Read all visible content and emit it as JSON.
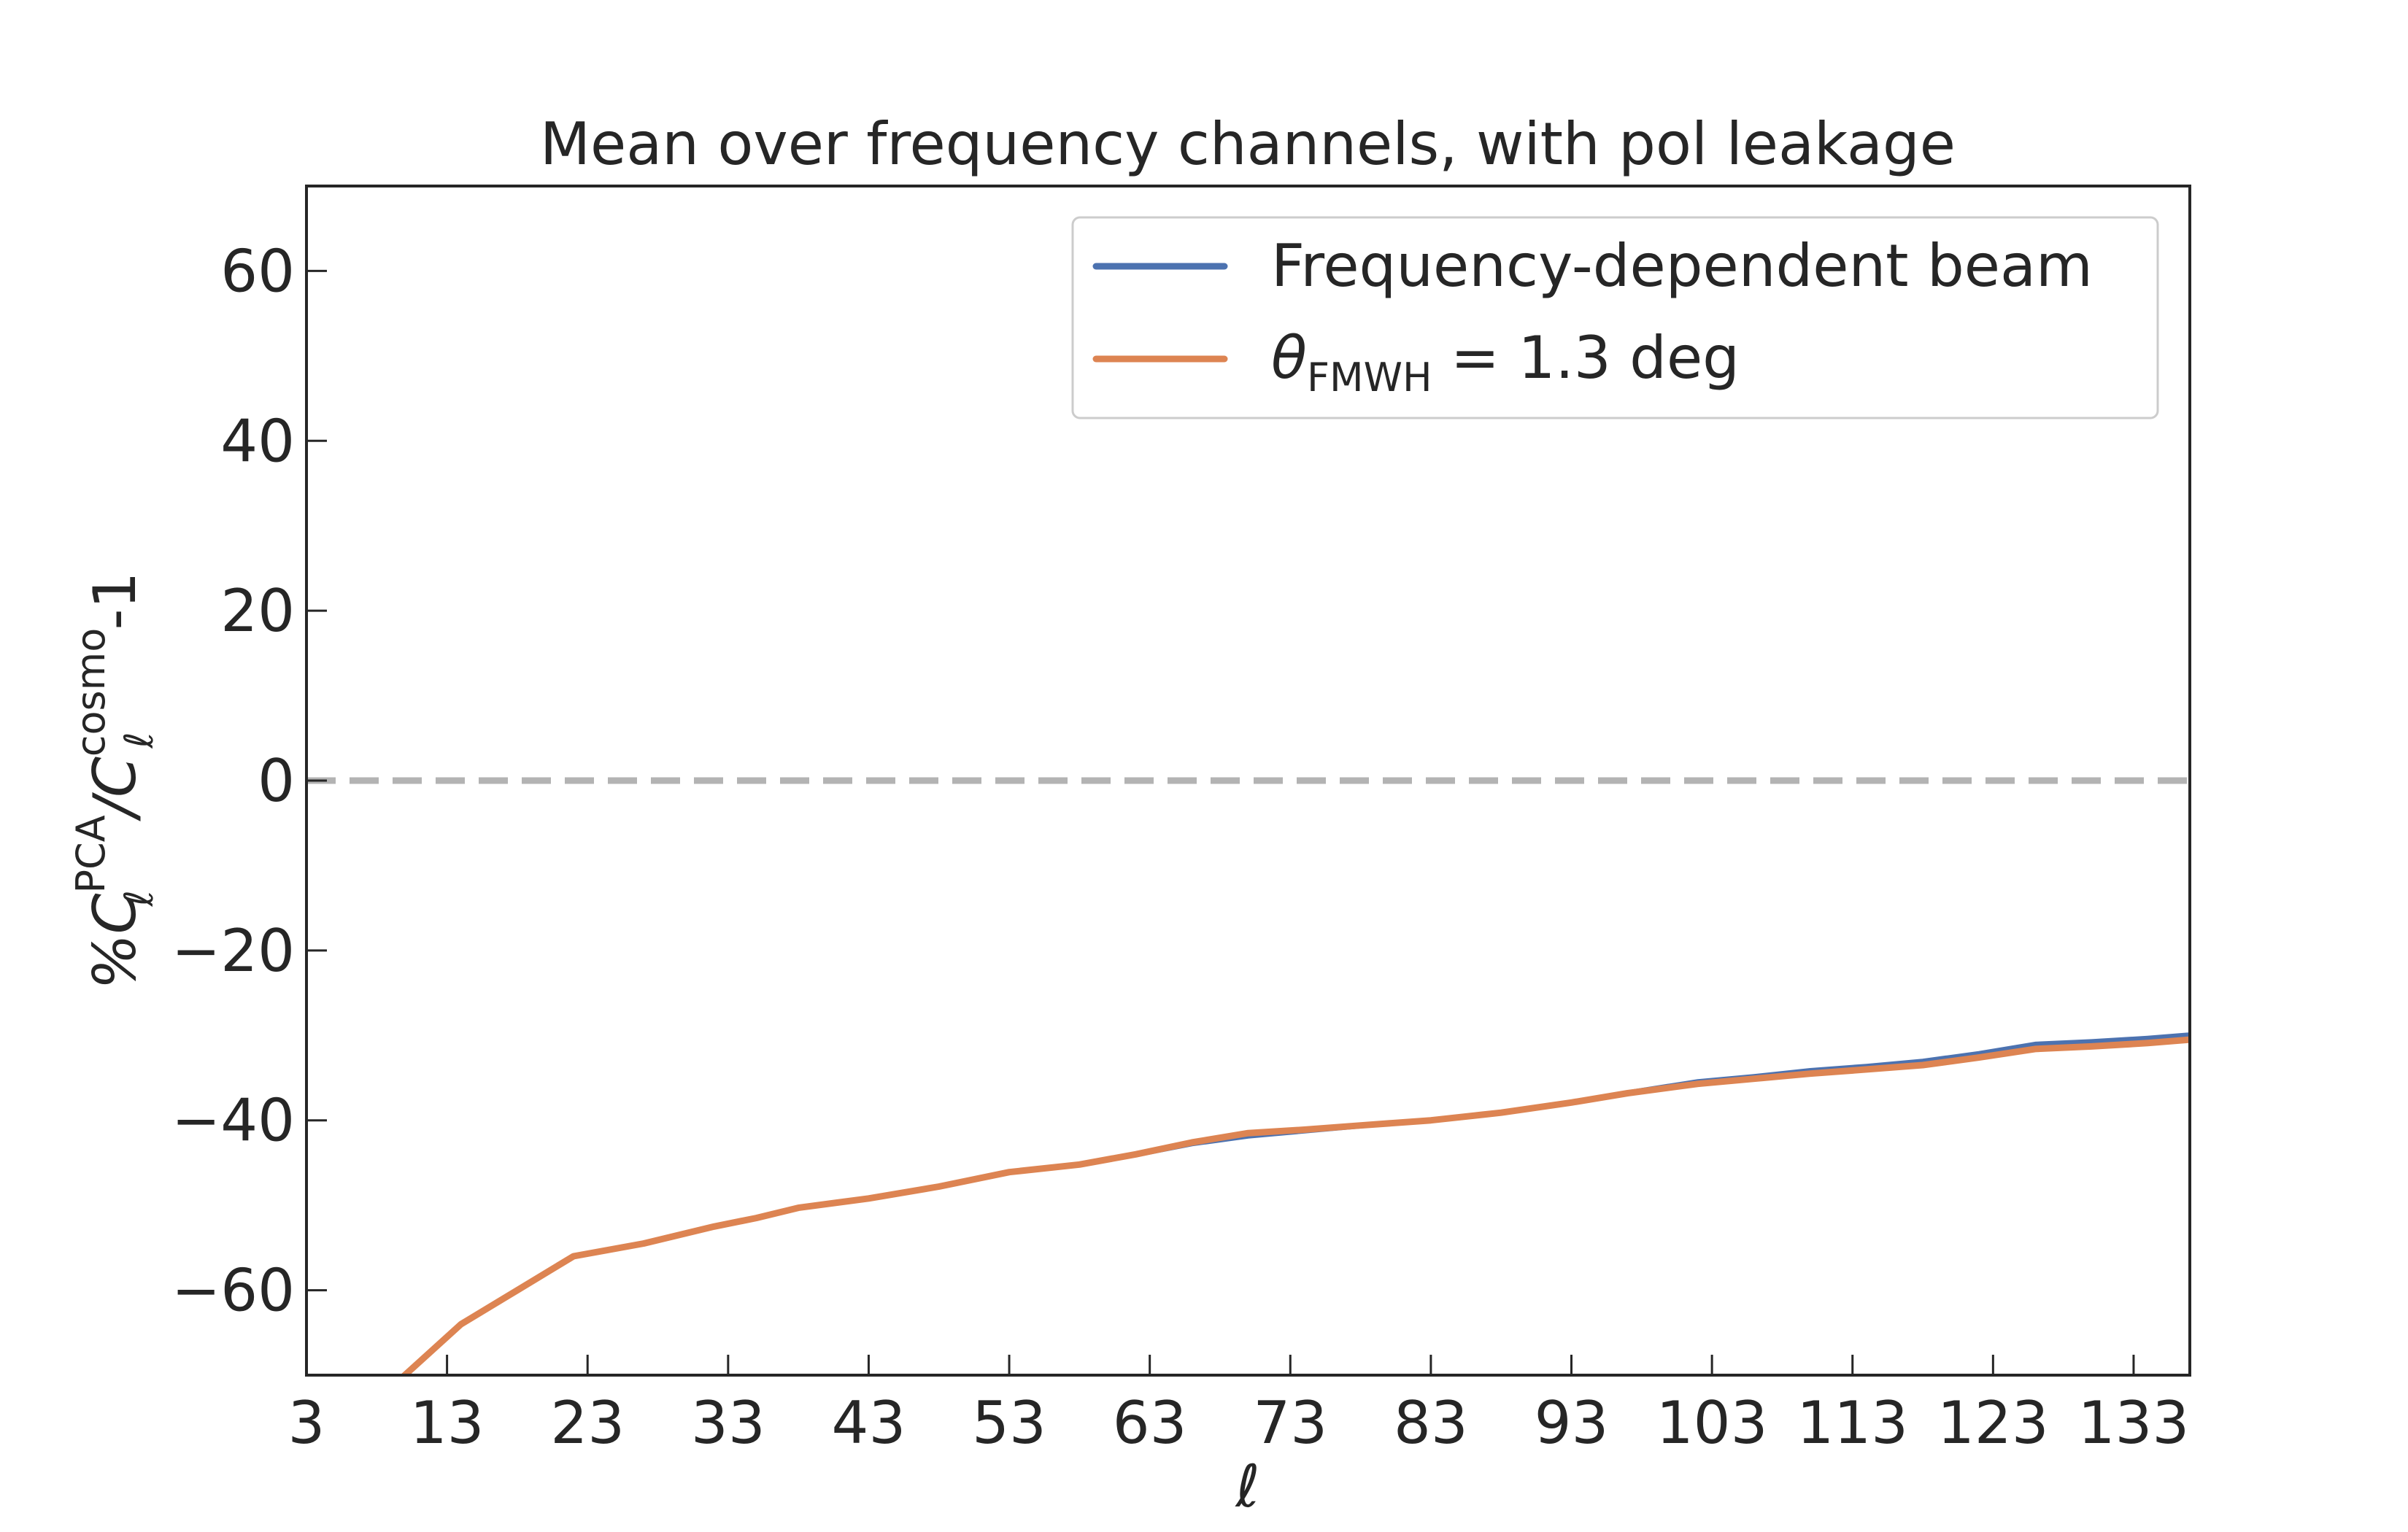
{
  "chart_data": {
    "type": "line",
    "title": "Mean over frequency channels, with pol leakage",
    "xlabel": "ℓ",
    "ylabel": {
      "prefix": "%C",
      "sub1": "ℓ",
      "sup1": "PCA",
      "slash": "/C",
      "sub2": "ℓ",
      "sup2": "cosmo",
      "suffix": "-1"
    },
    "xlim": [
      3,
      137
    ],
    "ylim": [
      -70,
      70
    ],
    "x_ticks": [
      3,
      13,
      23,
      33,
      43,
      53,
      63,
      73,
      83,
      93,
      103,
      113,
      123,
      133
    ],
    "y_ticks": [
      60,
      40,
      20,
      0,
      -20,
      -40,
      -60
    ],
    "x_tick_labels": [
      "3",
      "13",
      "23",
      "33",
      "43",
      "53",
      "63",
      "73",
      "83",
      "93",
      "103",
      "113",
      "123",
      "133"
    ],
    "y_tick_labels": [
      "60",
      "40",
      "20",
      "0",
      "−20",
      "−40",
      "−60"
    ],
    "reference_line": {
      "y": 0,
      "style": "dashed",
      "color": "#b3b3b3"
    },
    "grid": false,
    "legend_position": "top-right",
    "series": [
      {
        "name": "Frequency-dependent beam",
        "color": "#4c72b0",
        "x": [
          3,
          6,
          10,
          14,
          18,
          21,
          22,
          27,
          32,
          35,
          38,
          43,
          48,
          53,
          58,
          62,
          66,
          70,
          74,
          78,
          83,
          88,
          93,
          97,
          102,
          106,
          110,
          114,
          118,
          122,
          126,
          130,
          134,
          137
        ],
        "y": [
          -82,
          -76,
          -70,
          -64,
          -60,
          -57,
          -56,
          -54.5,
          -52.5,
          -51.5,
          -50.3,
          -49.2,
          -47.8,
          -46.1,
          -45.2,
          -44.1,
          -42.8,
          -41.9,
          -41.3,
          -40.7,
          -40.0,
          -39.1,
          -37.9,
          -36.7,
          -35.4,
          -34.8,
          -34.1,
          -33.6,
          -33.0,
          -32.1,
          -31.0,
          -30.7,
          -30.3,
          -29.9
        ]
      },
      {
        "name": "θ_FMWH = 1.3 deg",
        "legend": {
          "main": "θ",
          "sub": "FMWH",
          "rest": " =  1.3 deg"
        },
        "color": "#dd8452",
        "x": [
          3,
          6,
          10,
          14,
          18,
          21,
          22,
          27,
          32,
          35,
          38,
          43,
          48,
          53,
          58,
          62,
          66,
          70,
          74,
          78,
          83,
          88,
          93,
          97,
          102,
          106,
          110,
          114,
          118,
          122,
          126,
          130,
          134,
          137
        ],
        "y": [
          -82,
          -76,
          -70,
          -64,
          -60,
          -57,
          -56,
          -54.5,
          -52.5,
          -51.5,
          -50.3,
          -49.2,
          -47.8,
          -46.1,
          -45.2,
          -44.0,
          -42.6,
          -41.5,
          -41.1,
          -40.6,
          -40.0,
          -39.1,
          -37.9,
          -36.8,
          -35.7,
          -35.1,
          -34.5,
          -34.0,
          -33.5,
          -32.6,
          -31.6,
          -31.3,
          -30.9,
          -30.5
        ]
      }
    ]
  }
}
